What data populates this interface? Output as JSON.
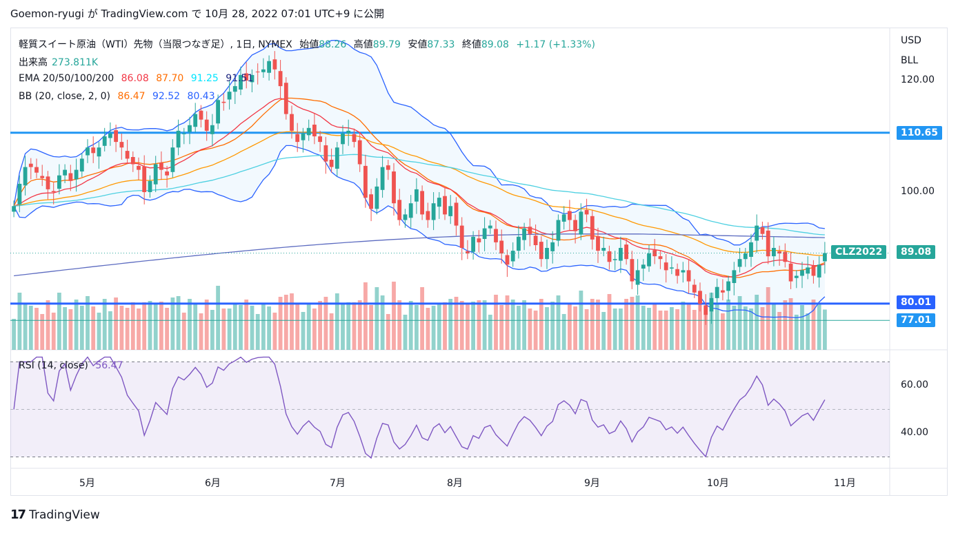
{
  "header": {
    "text": "Goemon-ryugi が TradingView.com で 10月 28, 2022 07:01 UTC+9 に公開"
  },
  "legend": {
    "title": "軽質スイート原油（WTI）先物（当限つなぎ足）, 1日, NYMEX",
    "ohlc": [
      {
        "label": "始値",
        "value": "88.26"
      },
      {
        "label": "高値",
        "value": "89.79"
      },
      {
        "label": "安値",
        "value": "87.33"
      },
      {
        "label": "終値",
        "value": "89.08"
      }
    ],
    "change": "+1.17 (+1.33%)",
    "volume_label": "出来高",
    "volume_value": "273.811K",
    "ema_label": "EMA 20/50/100/200",
    "ema_values": [
      "86.08",
      "87.70",
      "91.25",
      "91.51"
    ],
    "bb_label": "BB (20, close, 2, 0)",
    "bb_values": [
      "86.47",
      "92.52",
      "80.43"
    ],
    "rsi_label": "RSI (14, close)",
    "rsi_value": "56.47"
  },
  "axis": {
    "currency": "USD",
    "unit": "BLL",
    "price_ticks": [
      "120.00",
      "100.00"
    ],
    "rsi_ticks": [
      "60.00",
      "40.00"
    ],
    "months": [
      "5月",
      "6月",
      "7月",
      "8月",
      "9月",
      "10月",
      "11月"
    ]
  },
  "tags": {
    "symbol": "CLZ2022",
    "last": "89.08",
    "line_high": "110.65",
    "line_low": "80.01",
    "line_low2": "77.01"
  },
  "footer": {
    "logo": "17",
    "brand": "TradingView"
  },
  "colors": {
    "up": "#26a69a",
    "down": "#ef5350",
    "blue": "#2962ff",
    "hline": "#2196f3"
  },
  "chart_data": {
    "type": "candlestick",
    "title": "軽質スイート原油（WTI）先物（当限つなぎ足）, 1日, NYMEX",
    "price_range": [
      76,
      130
    ],
    "horizontal_levels": [
      110.65,
      80.01,
      77.01
    ],
    "rsi_levels": [
      70,
      30
    ],
    "closes": [
      97.5,
      101.5,
      104.5,
      104.5,
      103.5,
      102.5,
      100.5,
      100,
      103,
      104,
      102,
      104,
      106,
      108,
      107,
      108,
      110,
      110.5,
      109,
      108,
      106,
      105,
      104,
      100,
      102,
      105,
      104,
      103,
      108,
      111,
      110.5,
      112,
      114,
      113,
      111,
      112,
      116.5,
      116,
      118,
      119,
      121,
      120,
      121,
      121.5,
      122,
      123.5,
      122,
      119,
      114,
      111,
      109,
      110.5,
      111.5,
      110,
      109,
      105.5,
      104.5,
      108,
      110.5,
      111,
      109,
      105,
      99,
      97,
      101,
      104.5,
      104,
      98,
      95,
      96,
      98,
      100.5,
      96,
      95,
      98,
      99,
      96,
      97.5,
      94,
      90,
      89,
      92,
      91,
      93.5,
      94,
      91,
      89,
      87,
      89.5,
      92,
      93.5,
      92.5,
      90.5,
      88,
      90,
      91,
      95,
      96,
      95,
      93,
      96.5,
      96,
      91.5,
      89.5,
      90,
      87.5,
      88,
      90,
      88,
      84,
      86,
      87,
      89,
      88.5,
      88,
      86,
      86.5,
      85,
      86,
      84,
      82,
      80,
      78,
      81,
      83,
      82,
      84,
      86,
      88,
      89,
      91,
      94,
      92.5,
      88.5,
      90,
      89,
      87.5,
      84,
      85,
      86,
      86.5,
      85,
      87,
      89.08
    ],
    "months": [
      "5月",
      "6月",
      "7月",
      "8月",
      "9月",
      "10月",
      "11月"
    ]
  }
}
